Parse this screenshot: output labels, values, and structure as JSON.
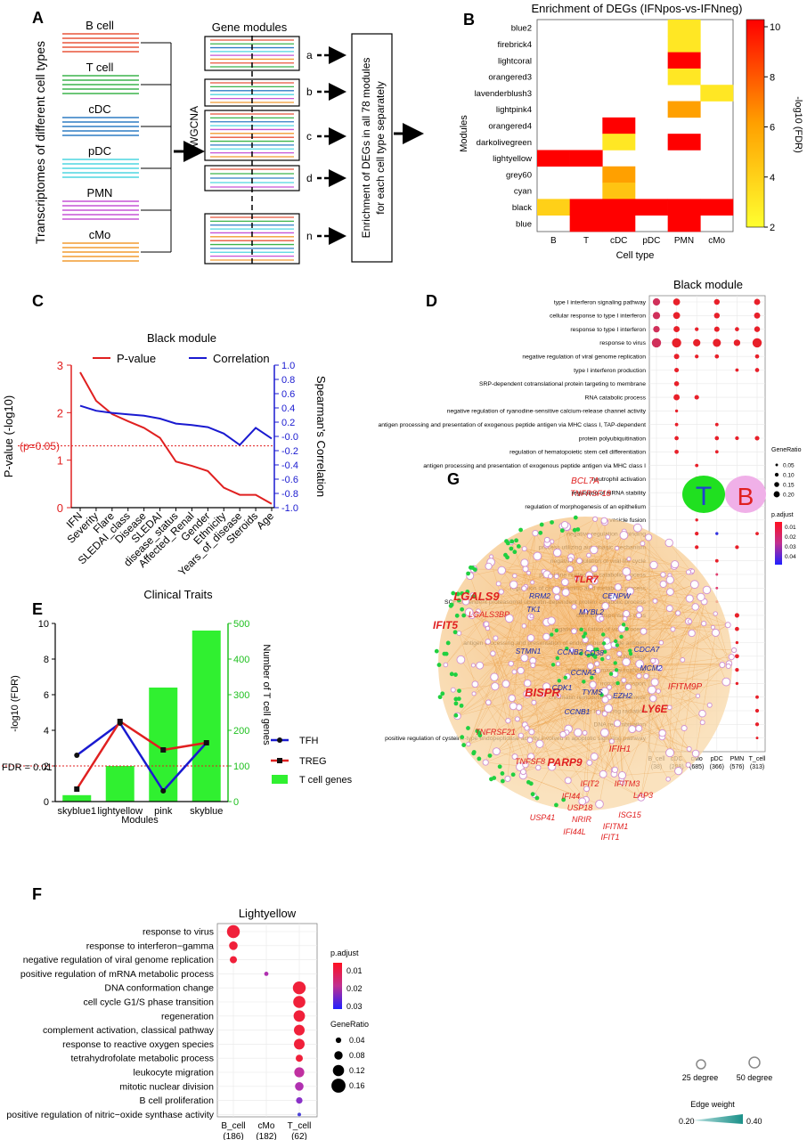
{
  "panel_letters": [
    "A",
    "B",
    "C",
    "D",
    "E",
    "F",
    "G"
  ],
  "panelA": {
    "ylabel": "Transcriptomes of different cell types",
    "cell_types": [
      {
        "name": "B cell",
        "color": "#e8553a"
      },
      {
        "name": "T cell",
        "color": "#3cb44b"
      },
      {
        "name": "cDC",
        "color": "#2e7dc4"
      },
      {
        "name": "pDC",
        "color": "#4fd6e0"
      },
      {
        "name": "PMN",
        "color": "#c654d6"
      },
      {
        "name": "cMo",
        "color": "#f29b30"
      }
    ],
    "method": "mWGCNA",
    "modules_title": "Gene modules",
    "module_labels": [
      "a",
      "b",
      "c",
      "d",
      "n"
    ],
    "box_lines": [
      "Enrichment of DEGs in all 78 modules",
      "for  each cell type separately"
    ]
  },
  "panelB": {
    "title": "Enrichment of DEGs (IFNpos-vs-IFNneg)",
    "ylabel": "Modules",
    "xlabel": "Cell type",
    "colorbar_label": "-log10 (FDR)",
    "colorbar_ticks": [
      "2",
      "4",
      "6",
      "8",
      "10"
    ],
    "rows": [
      "blue2",
      "firebrick4",
      "lightcoral",
      "orangered3",
      "lavenderblush3",
      "lightpink4",
      "orangered4",
      "darkolivegreen",
      "lightyellow",
      "grey60",
      "cyan",
      "black",
      "blue"
    ],
    "cols": [
      "B",
      "T",
      "cDC",
      "pDC",
      "PMN",
      "cMo"
    ],
    "cells": [
      [
        0,
        4,
        3.0
      ],
      [
        1,
        4,
        3.0
      ],
      [
        2,
        4,
        10
      ],
      [
        3,
        4,
        3.0
      ],
      [
        4,
        5,
        3.0
      ],
      [
        5,
        4,
        6.0
      ],
      [
        6,
        2,
        10
      ],
      [
        7,
        2,
        3.0
      ],
      [
        7,
        4,
        10
      ],
      [
        8,
        0,
        10
      ],
      [
        8,
        1,
        10
      ],
      [
        9,
        2,
        6.0
      ],
      [
        10,
        2,
        4.5
      ],
      [
        11,
        0,
        4.0
      ],
      [
        11,
        1,
        10
      ],
      [
        11,
        2,
        10
      ],
      [
        11,
        3,
        10
      ],
      [
        11,
        4,
        10
      ],
      [
        11,
        5,
        10
      ],
      [
        12,
        1,
        10
      ],
      [
        12,
        2,
        10
      ],
      [
        12,
        4,
        10
      ]
    ]
  },
  "panelC": {
    "title": "Black module",
    "legend": [
      "P-value",
      "Correlation"
    ],
    "ylabel_left": "P-value (-log10)",
    "ylabel_right": "Spearman's Correlation",
    "xlabel": "Clinical Traits",
    "threshold_label": "(p=0.05)",
    "left_ticks": [
      "0",
      "1",
      "2",
      "3"
    ],
    "right_ticks": [
      "1.0",
      "0.8",
      "0.6",
      "0.4",
      "0.2",
      "-0.0",
      "-0.2",
      "-0.4",
      "-0.6",
      "-0.8",
      "-1.0"
    ],
    "chart_data": {
      "type": "line",
      "categories": [
        "IFN",
        "Severity",
        "Flare",
        "SLEDAI_class",
        "Disease",
        "SLEDAI",
        "disease_status",
        "Affected_Renal",
        "Gender",
        "Ethnicity",
        "Years_of_disease",
        "Steroids",
        "Age"
      ],
      "series": [
        {
          "name": "P-value",
          "values": [
            2.85,
            2.25,
            1.97,
            1.82,
            1.68,
            1.47,
            0.97,
            0.88,
            0.77,
            0.42,
            0.27,
            0.27,
            0.08
          ]
        },
        {
          "name": "Correlation",
          "values": [
            0.43,
            0.36,
            0.33,
            0.31,
            0.29,
            0.25,
            0.18,
            0.16,
            0.13,
            0.04,
            -0.12,
            0.12,
            -0.03
          ]
        }
      ],
      "threshold": 1.3
    }
  },
  "panelD": {
    "title": "Black module",
    "terms": [
      "type I interferon signaling pathway",
      "cellular response to type I interferon",
      "response to type I interferon",
      "response to virus",
      "negative regulation of viral genome replication",
      "type I interferon production",
      "SRP-dependent cotranslational protein targeting to membrane",
      "RNA catabolic process",
      "negative regulation of ryanodine-sensitive calcium-release channel activity",
      "antigen processing and presentation of exogenous peptide antigen via MHC class I, TAP-dependent",
      "protein polyubiquitination",
      "regulation of hematopoietic stem cell differentiation",
      "antigen processing and presentation of exogenous peptide antigen via MHC class I",
      "neutrophil activation",
      "regulation of mRNA stability",
      "regulation of morphogenesis of an epithelium",
      "vesicle fusion",
      "negative regulation of binding",
      "process utilizing autophagic mechanism",
      "negative regulation of viral life cycle",
      "pyrimidine nucleoside catabolic process",
      "regulation of cellular amino acid metabolic process",
      "SCF-dependent proteasomal ubiquitin-dependent protein catabolic process",
      "defense response to virus",
      "negative regulation of viral process",
      "antigen processing and presentation of endogenous peptide antigen",
      "autophagy",
      "regulation of macroautophagy",
      "iron ion transport",
      "chromatin remodeling at centromere",
      "response to ionizing radiation",
      "DNA recombination",
      "positive regulation of cysteine-type endopeptidase activity involved in apoptotic signaling pathway"
    ],
    "cols": [
      "B_cell",
      "cDC",
      "cMo",
      "pDC",
      "PMN",
      "T_cell"
    ],
    "col_counts": [
      "(38)",
      "(208)",
      "(685)",
      "(366)",
      "(576)",
      "(313)"
    ],
    "dots": [
      [
        0,
        0,
        "#d0305a",
        0.15
      ],
      [
        0,
        1,
        "#e8202a",
        0.14
      ],
      [
        0,
        3,
        "#e8202a",
        0.11
      ],
      [
        0,
        5,
        "#e8202a",
        0.12
      ],
      [
        1,
        0,
        "#d0305a",
        0.15
      ],
      [
        1,
        1,
        "#e8202a",
        0.14
      ],
      [
        1,
        3,
        "#e8202a",
        0.11
      ],
      [
        1,
        5,
        "#e8202a",
        0.12
      ],
      [
        2,
        0,
        "#d0305a",
        0.13
      ],
      [
        2,
        1,
        "#e8202a",
        0.12
      ],
      [
        2,
        2,
        "#e8202a",
        0.06
      ],
      [
        2,
        3,
        "#e8202a",
        0.1
      ],
      [
        2,
        4,
        "#e8202a",
        0.07
      ],
      [
        2,
        5,
        "#e8202a",
        0.11
      ],
      [
        3,
        0,
        "#d0305a",
        0.2
      ],
      [
        3,
        1,
        "#e8202a",
        0.2
      ],
      [
        3,
        2,
        "#e8202a",
        0.15
      ],
      [
        3,
        3,
        "#e8202a",
        0.17
      ],
      [
        3,
        4,
        "#e8202a",
        0.13
      ],
      [
        3,
        5,
        "#e8202a",
        0.2
      ],
      [
        4,
        1,
        "#e8202a",
        0.1
      ],
      [
        4,
        2,
        "#e8202a",
        0.06
      ],
      [
        4,
        3,
        "#e8202a",
        0.07
      ],
      [
        4,
        5,
        "#e8202a",
        0.07
      ],
      [
        5,
        1,
        "#e8202a",
        0.08
      ],
      [
        5,
        4,
        "#e8202a",
        0.05
      ],
      [
        5,
        5,
        "#e8202a",
        0.07
      ],
      [
        6,
        1,
        "#e8202a",
        0.09
      ],
      [
        7,
        1,
        "#e8202a",
        0.12
      ],
      [
        7,
        2,
        "#e8202a",
        0.08
      ],
      [
        8,
        1,
        "#e8202a",
        0.04
      ],
      [
        9,
        1,
        "#e8202a",
        0.05
      ],
      [
        9,
        3,
        "#e8202a",
        0.05
      ],
      [
        10,
        1,
        "#e8202a",
        0.07
      ],
      [
        10,
        3,
        "#e8202a",
        0.07
      ],
      [
        10,
        4,
        "#e8202a",
        0.06
      ],
      [
        10,
        5,
        "#e8202a",
        0.08
      ],
      [
        11,
        1,
        "#e8202a",
        0.07
      ],
      [
        11,
        3,
        "#e8202a",
        0.05
      ],
      [
        12,
        2,
        "#e8202a",
        0.05
      ],
      [
        13,
        2,
        "#e8202a",
        0.09
      ],
      [
        14,
        2,
        "#e8202a",
        0.05
      ],
      [
        14,
        3,
        "#9040c0",
        0.05
      ],
      [
        15,
        2,
        "#e8202a",
        0.05
      ],
      [
        16,
        2,
        "#e8202a",
        0.04
      ],
      [
        17,
        2,
        "#e8202a",
        0.06
      ],
      [
        17,
        3,
        "#3030e0",
        0.04
      ],
      [
        17,
        5,
        "#e8202a",
        0.05
      ],
      [
        18,
        2,
        "#e8202a",
        0.06
      ],
      [
        18,
        4,
        "#e8202a",
        0.06
      ],
      [
        19,
        3,
        "#e8202a",
        0.05
      ],
      [
        20,
        3,
        "#e04070",
        0.03
      ],
      [
        21,
        3,
        "#e04070",
        0.03
      ],
      [
        22,
        3,
        "#e04070",
        0.03
      ],
      [
        23,
        4,
        "#e8202a",
        0.08
      ],
      [
        24,
        4,
        "#e8202a",
        0.07
      ],
      [
        25,
        4,
        "#e8202a",
        0.04
      ],
      [
        26,
        4,
        "#e8202a",
        0.07
      ],
      [
        27,
        4,
        "#e8202a",
        0.06
      ],
      [
        28,
        4,
        "#e8202a",
        0.04
      ],
      [
        29,
        5,
        "#e8202a",
        0.05
      ],
      [
        30,
        5,
        "#e8202a",
        0.06
      ],
      [
        31,
        5,
        "#e8202a",
        0.06
      ],
      [
        32,
        5,
        "#e8202a",
        0.03
      ]
    ],
    "legend_size_title": "GeneRatio",
    "legend_size_labels": [
      "0.05",
      "0.10",
      "0.15",
      "0.20"
    ],
    "legend_color_title": "p.adjust",
    "legend_color_labels": [
      "0.01",
      "0.02",
      "0.03",
      "0.04"
    ]
  },
  "panelE": {
    "ylabel_left": "-log10 (FDR)",
    "ylabel_right": "Number of T cell genes",
    "xlabel": "Modules",
    "threshold_label": "FDR = 0.01",
    "left_ticks": [
      "0",
      "2",
      "4",
      "6",
      "8",
      "10"
    ],
    "right_ticks": [
      "0",
      "100",
      "200",
      "300",
      "400",
      "500"
    ],
    "legend": [
      "TFH",
      "TREG",
      "T cell genes"
    ],
    "chart_data": {
      "type": "bar",
      "categories": [
        "skyblue1",
        "lightyellow",
        "pink",
        "skyblue"
      ],
      "series": [
        {
          "name": "T cell genes",
          "values": [
            18,
            100,
            320,
            480
          ]
        },
        {
          "name": "TFH",
          "values": [
            2.6,
            4.4,
            0.6,
            3.3
          ]
        },
        {
          "name": "TREG",
          "values": [
            0.7,
            4.5,
            2.9,
            3.3
          ]
        }
      ],
      "threshold": 2
    }
  },
  "panelF": {
    "title": "Lightyellow",
    "terms": [
      "response to virus",
      "response to interferon−gamma",
      "negative regulation of viral genome replication",
      "positive regulation of mRNA metabolic process",
      "DNA conformation change",
      "cell cycle G1/S phase transition",
      "regeneration",
      "complement activation, classical pathway",
      "response to reactive oxygen species",
      "tetrahydrofolate metabolic process",
      "leukocyte migration",
      "mitotic nuclear division",
      "B cell proliferation",
      "positive regulation of nitric−oxide synthase activity"
    ],
    "cols": [
      "B_cell",
      "cMo",
      "T_cell"
    ],
    "col_counts": [
      "(186)",
      "(182)",
      "(62)"
    ],
    "dots": [
      [
        0,
        0,
        "#f0203a",
        0.16
      ],
      [
        1,
        0,
        "#f0203a",
        0.1
      ],
      [
        2,
        0,
        "#f0203a",
        0.08
      ],
      [
        3,
        1,
        "#b030b0",
        0.04
      ],
      [
        4,
        2,
        "#f0203a",
        0.16
      ],
      [
        5,
        2,
        "#f0203a",
        0.15
      ],
      [
        6,
        2,
        "#f0203a",
        0.14
      ],
      [
        7,
        2,
        "#f0203a",
        0.13
      ],
      [
        8,
        2,
        "#f0203a",
        0.13
      ],
      [
        9,
        2,
        "#f0203a",
        0.08
      ],
      [
        10,
        2,
        "#c030a0",
        0.12
      ],
      [
        11,
        2,
        "#b030b0",
        0.1
      ],
      [
        12,
        2,
        "#8a30c8",
        0.07
      ],
      [
        13,
        2,
        "#4a40d8",
        0.03
      ]
    ],
    "legend_color_title": "p.adjust",
    "legend_color_labels": [
      "0.01",
      "0.02",
      "0.03"
    ],
    "legend_size_title": "GeneRatio",
    "legend_size_labels": [
      "0.04",
      "0.08",
      "0.12",
      "0.16"
    ]
  },
  "panelG": {
    "badge_t": "T",
    "badge_b": "B",
    "legend_25": "25 degree",
    "legend_50": "50 degree",
    "edge_title": "Edge weight",
    "edge_min": "0.20",
    "edge_max": "0.40",
    "genes_red": [
      {
        "t": "BCL7A",
        "x": 657,
        "y": 543,
        "s": 10
      },
      {
        "t": "TNFRSF18",
        "x": 663,
        "y": 557,
        "s": 9
      },
      {
        "t": "TLR7",
        "x": 658,
        "y": 654,
        "s": 11
      },
      {
        "t": "LGALS9",
        "x": 535,
        "y": 674,
        "s": 13
      },
      {
        "t": "LGALS3BP",
        "x": 549,
        "y": 693,
        "s": 9
      },
      {
        "t": "IFIT5",
        "x": 500,
        "y": 706,
        "s": 12
      },
      {
        "t": "BISPR",
        "x": 609,
        "y": 782,
        "s": 13
      },
      {
        "t": "IFITM9P",
        "x": 769,
        "y": 774,
        "s": 10
      },
      {
        "t": "LY6E",
        "x": 735,
        "y": 800,
        "s": 12
      },
      {
        "t": "TNFRSF21",
        "x": 556,
        "y": 825,
        "s": 9
      },
      {
        "t": "IFIH1",
        "x": 696,
        "y": 844,
        "s": 10
      },
      {
        "t": "TNFSF8",
        "x": 595,
        "y": 858,
        "s": 9
      },
      {
        "t": "PARP9",
        "x": 634,
        "y": 860,
        "s": 12
      },
      {
        "t": "IFIT2",
        "x": 662,
        "y": 883,
        "s": 9
      },
      {
        "t": "IFITM3",
        "x": 704,
        "y": 883,
        "s": 9
      },
      {
        "t": "IFI44",
        "x": 641,
        "y": 897,
        "s": 9
      },
      {
        "t": "LAP3",
        "x": 722,
        "y": 896,
        "s": 9
      },
      {
        "t": "USP18",
        "x": 651,
        "y": 910,
        "s": 9
      },
      {
        "t": "ISG15",
        "x": 707,
        "y": 918,
        "s": 9
      },
      {
        "t": "IFITM1",
        "x": 691,
        "y": 931,
        "s": 9
      },
      {
        "t": "USP41",
        "x": 609,
        "y": 921,
        "s": 9
      },
      {
        "t": "NRIR",
        "x": 653,
        "y": 923,
        "s": 9
      },
      {
        "t": "IFI44L",
        "x": 645,
        "y": 937,
        "s": 9
      },
      {
        "t": "IFIT1",
        "x": 685,
        "y": 943,
        "s": 9
      }
    ],
    "genes_blue": [
      {
        "t": "RRM2",
        "x": 606,
        "y": 672
      },
      {
        "t": "CENPW",
        "x": 692,
        "y": 672
      },
      {
        "t": "TK1",
        "x": 599,
        "y": 687
      },
      {
        "t": "MYBL2",
        "x": 664,
        "y": 690
      },
      {
        "t": "STMN1",
        "x": 593,
        "y": 734
      },
      {
        "t": "CCNB2",
        "x": 640,
        "y": 735
      },
      {
        "t": "CD38",
        "x": 667,
        "y": 736
      },
      {
        "t": "CDCA7",
        "x": 726,
        "y": 732
      },
      {
        "t": "CCNA2",
        "x": 655,
        "y": 758
      },
      {
        "t": "MCM2",
        "x": 731,
        "y": 753
      },
      {
        "t": "CDK1",
        "x": 631,
        "y": 775
      },
      {
        "t": "TYMS",
        "x": 665,
        "y": 780
      },
      {
        "t": "EZH2",
        "x": 699,
        "y": 784
      },
      {
        "t": "CCNB1",
        "x": 648,
        "y": 802
      }
    ]
  }
}
